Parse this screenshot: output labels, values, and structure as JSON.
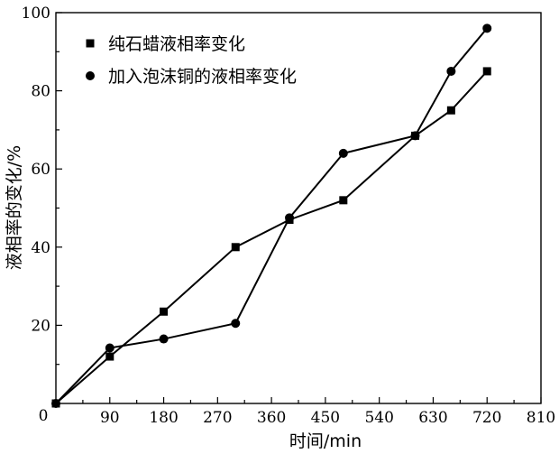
{
  "chart_data": {
    "type": "line",
    "xlabel": "时间/min",
    "ylabel": "液相率的变化/%",
    "xlim": [
      0,
      810
    ],
    "ylim": [
      0,
      100
    ],
    "xticks": [
      90,
      180,
      270,
      360,
      450,
      540,
      630,
      720,
      810
    ],
    "yticks": [
      20,
      40,
      60,
      80,
      100
    ],
    "origin_label": "0",
    "grid": false,
    "legend_position": "top-left",
    "series": [
      {
        "name": "纯石蜡液相率变化",
        "marker": "square",
        "x": [
          0,
          90,
          180,
          300,
          390,
          480,
          600,
          660,
          720
        ],
        "y": [
          0,
          12,
          23.5,
          40,
          47,
          52,
          68.5,
          75,
          85
        ]
      },
      {
        "name": "加入泡沫铜的液相率变化",
        "marker": "circle",
        "x": [
          0,
          90,
          180,
          300,
          390,
          480,
          600,
          660,
          720
        ],
        "y": [
          0,
          14.2,
          16.5,
          20.5,
          47.5,
          64,
          68.5,
          85,
          96
        ]
      }
    ]
  }
}
